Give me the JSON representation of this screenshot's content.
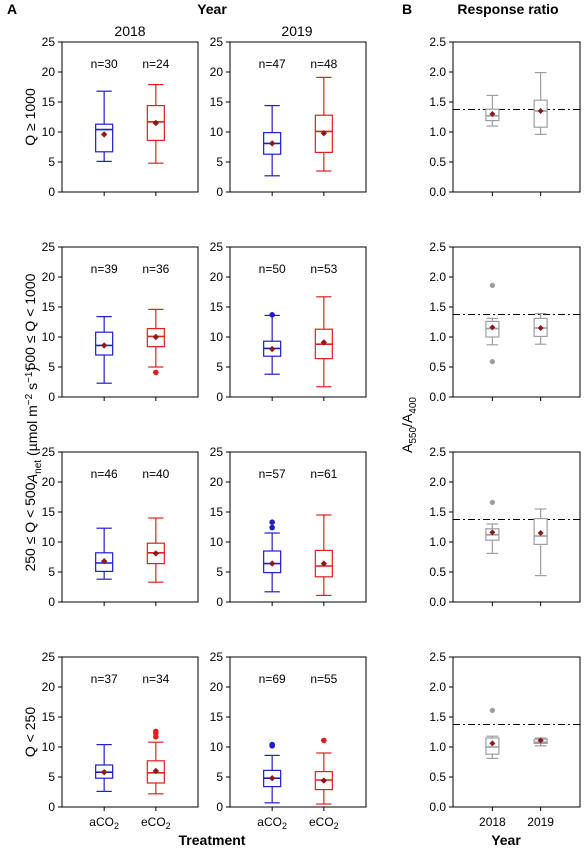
{
  "figure": {
    "panel_a_label": "A",
    "panel_b_label": "B",
    "year_header": "Year",
    "response_header": "Response ratio",
    "treatment_axis_label": "Treatment",
    "year_axis_label": "Year",
    "anet_label": "Anet (µmol m⁻² s⁻¹)",
    "ratio_label": "A550/A400"
  },
  "colors": {
    "aCO2": "#1f1fc8",
    "eCO2": "#e02020",
    "ratio_box": "#9e9e9e",
    "mean_marker": "#8b1a1a",
    "axis": "#000000"
  },
  "chart_data": [
    {
      "type": "boxplot",
      "column": "2018",
      "row_label": "Q ≥ 1000",
      "categories": [
        "aCO2",
        "eCO2"
      ],
      "ylim": [
        0,
        25
      ],
      "yticks": [
        0,
        5,
        10,
        15,
        20,
        25
      ],
      "groups": [
        {
          "name": "aCO2",
          "n_label": "n=30",
          "min": 5.1,
          "q1": 6.7,
          "median": 10.4,
          "q3": 11.3,
          "max": 16.8,
          "mean": 9.6,
          "outliers": []
        },
        {
          "name": "eCO2",
          "n_label": "n=24",
          "min": 4.8,
          "q1": 8.6,
          "median": 11.7,
          "q3": 14.4,
          "max": 17.9,
          "mean": 11.5,
          "outliers": []
        }
      ]
    },
    {
      "type": "boxplot",
      "column": "2019",
      "row_label": "Q ≥ 1000",
      "categories": [
        "aCO2",
        "eCO2"
      ],
      "ylim": [
        0,
        25
      ],
      "yticks": [
        0,
        5,
        10,
        15,
        20,
        25
      ],
      "groups": [
        {
          "name": "aCO2",
          "n_label": "n=47",
          "min": 2.7,
          "q1": 6.3,
          "median": 8.1,
          "q3": 9.9,
          "max": 14.4,
          "mean": 8.1,
          "outliers": []
        },
        {
          "name": "eCO2",
          "n_label": "n=48",
          "min": 3.5,
          "q1": 6.6,
          "median": 10.1,
          "q3": 12.8,
          "max": 19.1,
          "mean": 9.8,
          "outliers": []
        }
      ]
    },
    {
      "type": "boxplot",
      "column": "2018",
      "row_label": "500 ≤ Q < 1000",
      "categories": [
        "aCO2",
        "eCO2"
      ],
      "ylim": [
        0,
        25
      ],
      "yticks": [
        0,
        5,
        10,
        15,
        20,
        25
      ],
      "groups": [
        {
          "name": "aCO2",
          "n_label": "n=39",
          "min": 2.3,
          "q1": 7.0,
          "median": 8.6,
          "q3": 10.8,
          "max": 13.4,
          "mean": 8.6,
          "outliers": []
        },
        {
          "name": "eCO2",
          "n_label": "n=36",
          "min": 5.0,
          "q1": 8.4,
          "median": 10.1,
          "q3": 11.4,
          "max": 14.6,
          "mean": 10.0,
          "outliers": [
            4.1
          ]
        }
      ]
    },
    {
      "type": "boxplot",
      "column": "2019",
      "row_label": "500 ≤ Q < 1000",
      "categories": [
        "aCO2",
        "eCO2"
      ],
      "ylim": [
        0,
        25
      ],
      "yticks": [
        0,
        5,
        10,
        15,
        20,
        25
      ],
      "groups": [
        {
          "name": "aCO2",
          "n_label": "n=50",
          "min": 3.8,
          "q1": 6.8,
          "median": 8.1,
          "q3": 9.3,
          "max": 13.6,
          "mean": 8.0,
          "outliers": [
            13.7
          ]
        },
        {
          "name": "eCO2",
          "n_label": "n=53",
          "min": 1.7,
          "q1": 6.4,
          "median": 8.8,
          "q3": 11.3,
          "max": 16.7,
          "mean": 9.1,
          "outliers": []
        }
      ]
    },
    {
      "type": "boxplot",
      "column": "2018",
      "row_label": "250 ≤ Q < 500",
      "categories": [
        "aCO2",
        "eCO2"
      ],
      "ylim": [
        0,
        25
      ],
      "yticks": [
        0,
        5,
        10,
        15,
        20,
        25
      ],
      "groups": [
        {
          "name": "aCO2",
          "n_label": "n=46",
          "min": 3.8,
          "q1": 5.1,
          "median": 6.5,
          "q3": 8.2,
          "max": 12.3,
          "mean": 6.8,
          "outliers": []
        },
        {
          "name": "eCO2",
          "n_label": "n=40",
          "min": 3.3,
          "q1": 6.4,
          "median": 8.2,
          "q3": 9.8,
          "max": 14.0,
          "mean": 8.1,
          "outliers": []
        }
      ]
    },
    {
      "type": "boxplot",
      "column": "2019",
      "row_label": "250 ≤ Q < 500",
      "categories": [
        "aCO2",
        "eCO2"
      ],
      "ylim": [
        0,
        25
      ],
      "yticks": [
        0,
        5,
        10,
        15,
        20,
        25
      ],
      "groups": [
        {
          "name": "aCO2",
          "n_label": "n=57",
          "min": 1.7,
          "q1": 4.9,
          "median": 6.4,
          "q3": 8.5,
          "max": 11.5,
          "mean": 6.4,
          "outliers": [
            12.4,
            13.3
          ]
        },
        {
          "name": "eCO2",
          "n_label": "n=61",
          "min": 1.1,
          "q1": 4.2,
          "median": 6.0,
          "q3": 8.6,
          "max": 14.5,
          "mean": 6.4,
          "outliers": []
        }
      ]
    },
    {
      "type": "boxplot",
      "column": "2018",
      "row_label": "Q < 250",
      "categories": [
        "aCO2",
        "eCO2"
      ],
      "ylim": [
        0,
        25
      ],
      "yticks": [
        0,
        5,
        10,
        15,
        20,
        25
      ],
      "groups": [
        {
          "name": "aCO2",
          "n_label": "n=37",
          "min": 2.6,
          "q1": 4.8,
          "median": 5.8,
          "q3": 7.0,
          "max": 10.4,
          "mean": 5.8,
          "outliers": []
        },
        {
          "name": "eCO2",
          "n_label": "n=34",
          "min": 2.2,
          "q1": 4.0,
          "median": 5.7,
          "q3": 7.7,
          "max": 10.8,
          "mean": 6.0,
          "outliers": [
            11.7,
            12.3,
            12.6
          ]
        }
      ]
    },
    {
      "type": "boxplot",
      "column": "2019",
      "row_label": "Q < 250",
      "categories": [
        "aCO2",
        "eCO2"
      ],
      "ylim": [
        0,
        25
      ],
      "yticks": [
        0,
        5,
        10,
        15,
        20,
        25
      ],
      "groups": [
        {
          "name": "aCO2",
          "n_label": "n=69",
          "min": 0.7,
          "q1": 3.4,
          "median": 4.8,
          "q3": 6.1,
          "max": 8.6,
          "mean": 4.8,
          "outliers": [
            10.2,
            10.4
          ]
        },
        {
          "name": "eCO2",
          "n_label": "n=55",
          "min": 0.5,
          "q1": 2.9,
          "median": 4.5,
          "q3": 5.9,
          "max": 9.0,
          "mean": 4.4,
          "outliers": [
            11.1
          ]
        }
      ]
    },
    {
      "type": "boxplot",
      "panel": "B",
      "row_label": "Q ≥ 1000",
      "categories": [
        "2018",
        "2019"
      ],
      "ylim": [
        0,
        2.5
      ],
      "yticks": [
        "0.0",
        "0.5",
        "1.0",
        "1.5",
        "2.0",
        "2.5"
      ],
      "reference_line": 1.375,
      "groups": [
        {
          "name": "2018",
          "min": 1.1,
          "q1": 1.19,
          "median": 1.27,
          "q3": 1.38,
          "max": 1.61,
          "mean": 1.3,
          "outliers": []
        },
        {
          "name": "2019",
          "min": 0.96,
          "q1": 1.08,
          "median": 1.35,
          "q3": 1.53,
          "max": 1.99,
          "mean": 1.35,
          "outliers": []
        }
      ]
    },
    {
      "type": "boxplot",
      "panel": "B",
      "row_label": "500 ≤ Q < 1000",
      "categories": [
        "2018",
        "2019"
      ],
      "ylim": [
        0,
        2.5
      ],
      "yticks": [
        "0.0",
        "0.5",
        "1.0",
        "1.5",
        "2.0",
        "2.5"
      ],
      "reference_line": 1.375,
      "groups": [
        {
          "name": "2018",
          "min": 0.87,
          "q1": 1.0,
          "median": 1.14,
          "q3": 1.26,
          "max": 1.31,
          "mean": 1.16,
          "outliers": [
            0.59,
            1.86
          ]
        },
        {
          "name": "2019",
          "min": 0.88,
          "q1": 1.01,
          "median": 1.15,
          "q3": 1.31,
          "max": 1.39,
          "mean": 1.15,
          "outliers": []
        }
      ]
    },
    {
      "type": "boxplot",
      "panel": "B",
      "row_label": "250 ≤ Q < 500",
      "categories": [
        "2018",
        "2019"
      ],
      "ylim": [
        0,
        2.5
      ],
      "yticks": [
        "0.0",
        "0.5",
        "1.0",
        "1.5",
        "2.0",
        "2.5"
      ],
      "reference_line": 1.375,
      "groups": [
        {
          "name": "2018",
          "min": 0.81,
          "q1": 1.03,
          "median": 1.12,
          "q3": 1.22,
          "max": 1.3,
          "mean": 1.16,
          "outliers": [
            1.66
          ]
        },
        {
          "name": "2019",
          "min": 0.44,
          "q1": 0.96,
          "median": 1.1,
          "q3": 1.39,
          "max": 1.55,
          "mean": 1.15,
          "outliers": []
        }
      ]
    },
    {
      "type": "boxplot",
      "panel": "B",
      "row_label": "Q < 250",
      "categories": [
        "2018",
        "2019"
      ],
      "ylim": [
        0,
        2.5
      ],
      "yticks": [
        "0.0",
        "0.5",
        "1.0",
        "1.5",
        "2.0",
        "2.5"
      ],
      "reference_line": 1.375,
      "groups": [
        {
          "name": "2018",
          "min": 0.81,
          "q1": 0.88,
          "median": 1.0,
          "q3": 1.15,
          "max": 1.18,
          "mean": 1.06,
          "outliers": [
            1.61
          ]
        },
        {
          "name": "2019",
          "min": 1.02,
          "q1": 1.06,
          "median": 1.08,
          "q3": 1.13,
          "max": 1.15,
          "mean": 1.11,
          "outliers": []
        }
      ]
    }
  ]
}
